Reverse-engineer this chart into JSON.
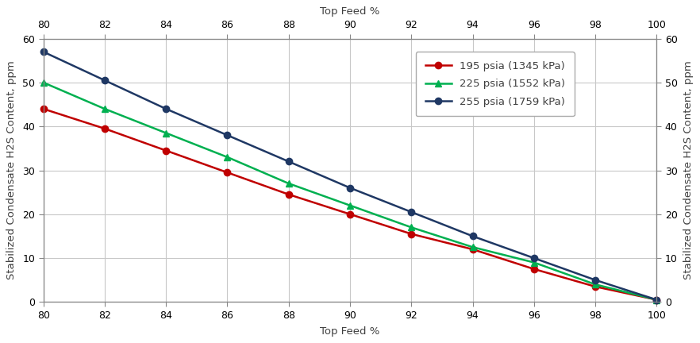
{
  "x": [
    80,
    82,
    84,
    86,
    88,
    90,
    92,
    94,
    96,
    98,
    100
  ],
  "series": [
    {
      "label": "195 psia (1345 kPa)",
      "color": "#C00000",
      "marker": "o",
      "values": [
        44,
        39.5,
        34.5,
        29.5,
        24.5,
        20,
        15.5,
        12,
        7.5,
        3.5,
        0.5
      ]
    },
    {
      "label": "225 psia (1552 kPa)",
      "color": "#00B050",
      "marker": "^",
      "values": [
        50,
        44,
        38.5,
        33,
        27,
        22,
        17,
        12.5,
        9,
        4,
        0.5
      ]
    },
    {
      "label": "255 psia (1759 kPa)",
      "color": "#1F3864",
      "marker": "o",
      "values": [
        57,
        50.5,
        44,
        38,
        32,
        26,
        20.5,
        15,
        10,
        5,
        0.5
      ]
    }
  ],
  "xlabel": "Top Feed %",
  "ylabel_left": "Stabilized Condensate H2S Content, ppm",
  "ylabel_right": "Stabilized Condensate H2S Content, ppm",
  "top_xlabel": "Top Feed %",
  "xlim": [
    80,
    100
  ],
  "ylim": [
    0,
    60
  ],
  "yticks": [
    0,
    10,
    20,
    30,
    40,
    50,
    60
  ],
  "xticks": [
    80,
    82,
    84,
    86,
    88,
    90,
    92,
    94,
    96,
    98,
    100
  ],
  "grid_color": "#C8C8C8",
  "background_color": "#FFFFFF",
  "axis_label_fontsize": 9.5,
  "tick_fontsize": 9,
  "legend_fontsize": 9.5,
  "line_width": 1.8,
  "marker_size": 6
}
